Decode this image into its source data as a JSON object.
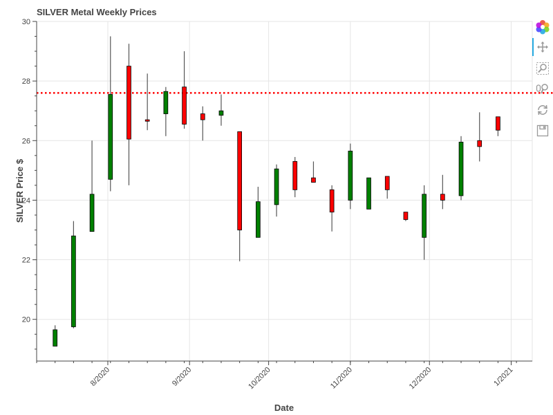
{
  "chart_data": {
    "type": "candlestick",
    "title": "SILVER Metal Weekly Prices",
    "xlabel": "Date",
    "ylabel": "SILVER Price $",
    "ylim": [
      18.6,
      30
    ],
    "yticks": [
      20,
      22,
      24,
      26,
      28,
      30
    ],
    "x_ticks": [
      {
        "date": "2020-08-01",
        "label": "8/2020"
      },
      {
        "date": "2020-09-01",
        "label": "9/2020"
      },
      {
        "date": "2020-10-01",
        "label": "10/2020"
      },
      {
        "date": "2020-11-01",
        "label": "11/2020"
      },
      {
        "date": "2020-12-01",
        "label": "12/2020"
      },
      {
        "date": "2021-01-01",
        "label": "1/2021"
      }
    ],
    "xlim": [
      "2020-07-05",
      "2021-01-09"
    ],
    "reference_line": {
      "value": 27.6,
      "color": "#ff0000",
      "style": "dotted"
    },
    "up_color": "#008000",
    "down_color": "#ff0000",
    "series": [
      {
        "date": "2020-07-12",
        "open": 19.1,
        "high": 19.8,
        "low": 19.1,
        "close": 19.65
      },
      {
        "date": "2020-07-19",
        "open": 19.75,
        "high": 23.3,
        "low": 19.7,
        "close": 22.8
      },
      {
        "date": "2020-07-26",
        "open": 22.95,
        "high": 26.0,
        "low": 22.95,
        "close": 24.2
      },
      {
        "date": "2020-08-02",
        "open": 24.7,
        "high": 29.5,
        "low": 24.3,
        "close": 27.55
      },
      {
        "date": "2020-08-09",
        "open": 28.5,
        "high": 29.25,
        "low": 24.5,
        "close": 26.05
      },
      {
        "date": "2020-08-16",
        "open": 26.7,
        "high": 28.25,
        "low": 26.35,
        "close": 26.65
      },
      {
        "date": "2020-08-23",
        "open": 26.9,
        "high": 27.8,
        "low": 26.15,
        "close": 27.65
      },
      {
        "date": "2020-08-30",
        "open": 27.8,
        "high": 29.0,
        "low": 26.4,
        "close": 26.55
      },
      {
        "date": "2020-09-06",
        "open": 26.9,
        "high": 27.15,
        "low": 26.0,
        "close": 26.7
      },
      {
        "date": "2020-09-13",
        "open": 26.85,
        "high": 27.55,
        "low": 26.5,
        "close": 27.0
      },
      {
        "date": "2020-09-20",
        "open": 26.3,
        "high": 26.3,
        "low": 21.95,
        "close": 23.0
      },
      {
        "date": "2020-09-27",
        "open": 22.75,
        "high": 24.45,
        "low": 22.75,
        "close": 23.95
      },
      {
        "date": "2020-10-04",
        "open": 23.85,
        "high": 25.2,
        "low": 23.45,
        "close": 25.05
      },
      {
        "date": "2020-10-11",
        "open": 25.3,
        "high": 25.45,
        "low": 24.1,
        "close": 24.35
      },
      {
        "date": "2020-10-18",
        "open": 24.75,
        "high": 25.3,
        "low": 24.6,
        "close": 24.6
      },
      {
        "date": "2020-10-25",
        "open": 24.35,
        "high": 24.5,
        "low": 22.95,
        "close": 23.6
      },
      {
        "date": "2020-11-01",
        "open": 24.0,
        "high": 25.9,
        "low": 23.7,
        "close": 25.65
      },
      {
        "date": "2020-11-08",
        "open": 23.7,
        "high": 24.75,
        "low": 23.7,
        "close": 24.75
      },
      {
        "date": "2020-11-15",
        "open": 24.8,
        "high": 24.8,
        "low": 24.05,
        "close": 24.35
      },
      {
        "date": "2020-11-22",
        "open": 23.6,
        "high": 23.6,
        "low": 23.3,
        "close": 23.35
      },
      {
        "date": "2020-11-29",
        "open": 22.75,
        "high": 24.5,
        "low": 22.0,
        "close": 24.2
      },
      {
        "date": "2020-12-06",
        "open": 24.2,
        "high": 24.85,
        "low": 23.7,
        "close": 24.0
      },
      {
        "date": "2020-12-13",
        "open": 24.15,
        "high": 26.15,
        "low": 24.0,
        "close": 25.95
      },
      {
        "date": "2020-12-20",
        "open": 26.0,
        "high": 26.95,
        "low": 25.3,
        "close": 25.8
      },
      {
        "date": "2020-12-27",
        "open": 26.8,
        "high": 26.8,
        "low": 26.15,
        "close": 26.35
      }
    ]
  },
  "toolbar": {
    "tools": [
      {
        "name": "bokeh-logo-icon",
        "interactable": false
      },
      {
        "name": "pan-tool-icon",
        "interactable": true,
        "active": true
      },
      {
        "name": "box-zoom-tool-icon",
        "interactable": true
      },
      {
        "name": "wheel-zoom-tool-icon",
        "interactable": true
      },
      {
        "name": "reset-tool-icon",
        "interactable": true
      },
      {
        "name": "save-tool-icon",
        "interactable": true
      }
    ]
  }
}
